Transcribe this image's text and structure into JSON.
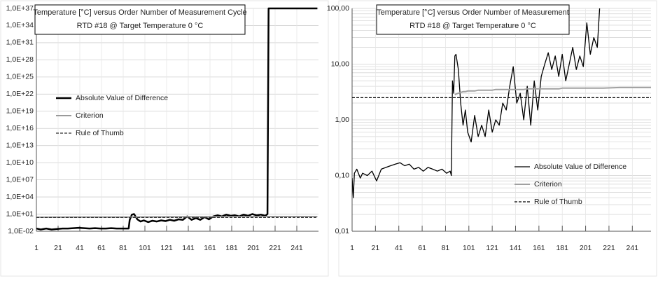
{
  "chart_data": [
    {
      "type": "line",
      "title": "Temperature [°C] versus Order Number of Measurement Cycle",
      "subtitle": "RTD #18  @ Target Temperature 0 °C",
      "log_y": true,
      "grid": true,
      "minor_grid": false,
      "legend": "center-left",
      "xlim": [
        1,
        261
      ],
      "xticks": [
        1,
        21,
        41,
        61,
        81,
        101,
        121,
        141,
        161,
        181,
        201,
        221,
        241
      ],
      "ylim": [
        0.01,
        1e+37
      ],
      "yticks": [
        {
          "value": 0.01,
          "label": "1,0E-02"
        },
        {
          "value": 10,
          "label": "1,0E+01"
        },
        {
          "value": 10000,
          "label": "1,0E+04"
        },
        {
          "value": 10000000.0,
          "label": "1,0E+07"
        },
        {
          "value": 10000000000.0,
          "label": "1,0E+10"
        },
        {
          "value": 10000000000000.0,
          "label": "1,0E+13"
        },
        {
          "value": 1e+16,
          "label": "1,0E+16"
        },
        {
          "value": 1e+19,
          "label": "1,0E+19"
        },
        {
          "value": 1e+22,
          "label": "1,0E+22"
        },
        {
          "value": 1e+25,
          "label": "1,0E+25"
        },
        {
          "value": 1e+28,
          "label": "1,0E+28"
        },
        {
          "value": 1e+31,
          "label": "1,0E+31"
        },
        {
          "value": 1e+34,
          "label": "1,0E+34"
        },
        {
          "value": 1e+37,
          "label": "1,0E+37"
        }
      ],
      "x": [
        1,
        5,
        10,
        15,
        20,
        25,
        30,
        35,
        40,
        45,
        50,
        55,
        60,
        65,
        70,
        75,
        80,
        86,
        87,
        89,
        91,
        94,
        97,
        100,
        104,
        108,
        112,
        116,
        120,
        124,
        128,
        132,
        136,
        140,
        144,
        148,
        152,
        156,
        160,
        164,
        168,
        172,
        176,
        180,
        184,
        188,
        192,
        196,
        200,
        204,
        208,
        212,
        214,
        215,
        230,
        245,
        260
      ],
      "series": [
        {
          "name": "Absolute Value of Difference",
          "color": "#000000",
          "width": 2.5,
          "dash": false,
          "values": [
            0.03,
            0.02,
            0.03,
            0.02,
            0.025,
            0.03,
            0.03,
            0.035,
            0.04,
            0.035,
            0.03,
            0.035,
            0.03,
            0.03,
            0.035,
            0.03,
            0.03,
            0.03,
            1,
            8,
            10,
            1.2,
            0.5,
            0.8,
            0.4,
            0.7,
            0.5,
            0.8,
            0.6,
            1,
            0.7,
            1.2,
            1,
            4,
            1,
            2,
            1,
            3,
            1.2,
            4,
            6,
            4,
            8,
            5,
            6,
            4,
            8,
            5,
            10,
            6,
            8,
            5,
            10,
            1e+37,
            1e+37,
            1e+37,
            1e+37
          ]
        },
        {
          "name": "Criterion",
          "color": "#9a9a9a",
          "width": 2,
          "dash": false,
          "values": [
            2.8,
            2.8,
            2.8,
            2.9,
            2.9,
            2.9,
            3,
            3,
            3,
            3,
            3,
            3,
            3,
            3,
            3,
            3,
            3,
            3,
            3,
            3,
            3.1,
            3.1,
            3.2,
            3.2,
            3.2,
            3.3,
            3.3,
            3.3,
            3.3,
            3.4,
            3.4,
            3.4,
            3.5,
            3.5,
            3.5,
            3.5,
            3.5,
            3.6,
            3.6,
            3.6,
            3.6,
            3.6,
            3.6,
            3.7,
            3.7,
            3.7,
            3.7,
            3.7,
            3.7,
            3.7,
            3.7,
            3.8,
            3.8,
            3.8,
            3.8,
            3.8,
            3.8
          ]
        },
        {
          "name": "Rule of Thumb",
          "color": "#333333",
          "width": 1.3,
          "dash": true,
          "values": [
            2.5,
            2.5,
            2.5,
            2.5,
            2.5,
            2.5,
            2.5,
            2.5,
            2.5,
            2.5,
            2.5,
            2.5,
            2.5,
            2.5,
            2.5,
            2.5,
            2.5,
            2.5,
            2.5,
            2.5,
            2.5,
            2.5,
            2.5,
            2.5,
            2.5,
            2.5,
            2.5,
            2.5,
            2.5,
            2.5,
            2.5,
            2.5,
            2.5,
            2.5,
            2.5,
            2.5,
            2.5,
            2.5,
            2.5,
            2.5,
            2.5,
            2.5,
            2.5,
            2.5,
            2.5,
            2.5,
            2.5,
            2.5,
            2.5,
            2.5,
            2.5,
            2.5,
            2.5,
            2.5,
            2.5,
            2.5,
            2.5
          ]
        }
      ]
    },
    {
      "type": "line",
      "title": "Temperature [°C] versus Order Number of Measurement",
      "subtitle": "RTD #18  @ Target Temperature 0 °C",
      "log_y": true,
      "grid": true,
      "minor_grid": true,
      "legend": "lower-right",
      "xlim": [
        1,
        257
      ],
      "xticks": [
        1,
        21,
        41,
        61,
        81,
        101,
        121,
        141,
        161,
        181,
        201,
        221,
        241
      ],
      "ylim": [
        0.01,
        100
      ],
      "yticks": [
        {
          "value": 0.01,
          "label": "0,01"
        },
        {
          "value": 0.1,
          "label": "0,10"
        },
        {
          "value": 1,
          "label": "1,00"
        },
        {
          "value": 10,
          "label": "10,00"
        },
        {
          "value": 100,
          "label": "100,00"
        }
      ],
      "x": [
        1,
        2,
        3,
        5,
        8,
        10,
        14,
        18,
        22,
        26,
        30,
        34,
        38,
        42,
        46,
        50,
        54,
        58,
        62,
        66,
        70,
        74,
        78,
        82,
        85,
        86,
        87,
        88,
        89,
        90,
        92,
        94,
        96,
        98,
        100,
        103,
        106,
        109,
        112,
        115,
        118,
        121,
        124,
        127,
        130,
        133,
        136,
        139,
        142,
        145,
        148,
        151,
        154,
        157,
        160,
        163,
        166,
        169,
        172,
        175,
        178,
        181,
        184,
        187,
        190,
        193,
        196,
        199,
        202,
        205,
        208,
        211,
        213,
        216,
        230,
        245,
        257
      ],
      "series": [
        {
          "name": "Absolute Value of Difference",
          "color": "#000000",
          "width": 1.3,
          "dash": false,
          "values": [
            0.09,
            0.04,
            0.11,
            0.13,
            0.09,
            0.11,
            0.1,
            0.12,
            0.08,
            0.13,
            0.14,
            0.15,
            0.16,
            0.17,
            0.15,
            0.16,
            0.13,
            0.14,
            0.12,
            0.14,
            0.13,
            0.12,
            0.13,
            0.11,
            0.12,
            0.1,
            5,
            3,
            14,
            15,
            8,
            2,
            0.8,
            1.5,
            0.6,
            0.4,
            1.2,
            0.5,
            0.8,
            0.5,
            1.5,
            0.6,
            1,
            0.8,
            2,
            1.5,
            4,
            9,
            2,
            3,
            1,
            4,
            0.8,
            5,
            1.5,
            6,
            10,
            16,
            8,
            14,
            6,
            15,
            5,
            10,
            20,
            8,
            14,
            9,
            55,
            15,
            30,
            20,
            100,
            null,
            null,
            null,
            null
          ]
        },
        {
          "name": "Criterion",
          "color": "#a0a0a0",
          "width": 2,
          "dash": false,
          "values": [
            null,
            null,
            null,
            null,
            null,
            null,
            null,
            null,
            null,
            null,
            null,
            null,
            null,
            null,
            null,
            null,
            null,
            null,
            null,
            null,
            null,
            null,
            null,
            null,
            null,
            null,
            null,
            null,
            2.8,
            2.9,
            3.0,
            3.1,
            3.2,
            3.2,
            3.3,
            3.3,
            3.3,
            3.4,
            3.4,
            3.4,
            3.4,
            3.4,
            3.5,
            3.5,
            3.5,
            3.5,
            3.5,
            3.5,
            3.5,
            3.5,
            3.5,
            3.6,
            3.6,
            3.6,
            3.6,
            3.6,
            3.6,
            3.6,
            3.6,
            3.6,
            3.6,
            3.7,
            3.7,
            3.7,
            3.7,
            3.7,
            3.7,
            3.7,
            3.7,
            3.7,
            3.7,
            3.7,
            3.7,
            3.7,
            3.8,
            3.8,
            3.8
          ]
        },
        {
          "name": "Rule of Thumb",
          "color": "#000000",
          "width": 1.2,
          "dash": true,
          "values": [
            2.5,
            2.5,
            2.5,
            2.5,
            2.5,
            2.5,
            2.5,
            2.5,
            2.5,
            2.5,
            2.5,
            2.5,
            2.5,
            2.5,
            2.5,
            2.5,
            2.5,
            2.5,
            2.5,
            2.5,
            2.5,
            2.5,
            2.5,
            2.5,
            2.5,
            2.5,
            2.5,
            2.5,
            2.5,
            2.5,
            2.5,
            2.5,
            2.5,
            2.5,
            2.5,
            2.5,
            2.5,
            2.5,
            2.5,
            2.5,
            2.5,
            2.5,
            2.5,
            2.5,
            2.5,
            2.5,
            2.5,
            2.5,
            2.5,
            2.5,
            2.5,
            2.5,
            2.5,
            2.5,
            2.5,
            2.5,
            2.5,
            2.5,
            2.5,
            2.5,
            2.5,
            2.5,
            2.5,
            2.5,
            2.5,
            2.5,
            2.5,
            2.5,
            2.5,
            2.5,
            2.5,
            2.5,
            2.5,
            2.5,
            2.5,
            2.5,
            2.5
          ]
        }
      ]
    }
  ]
}
